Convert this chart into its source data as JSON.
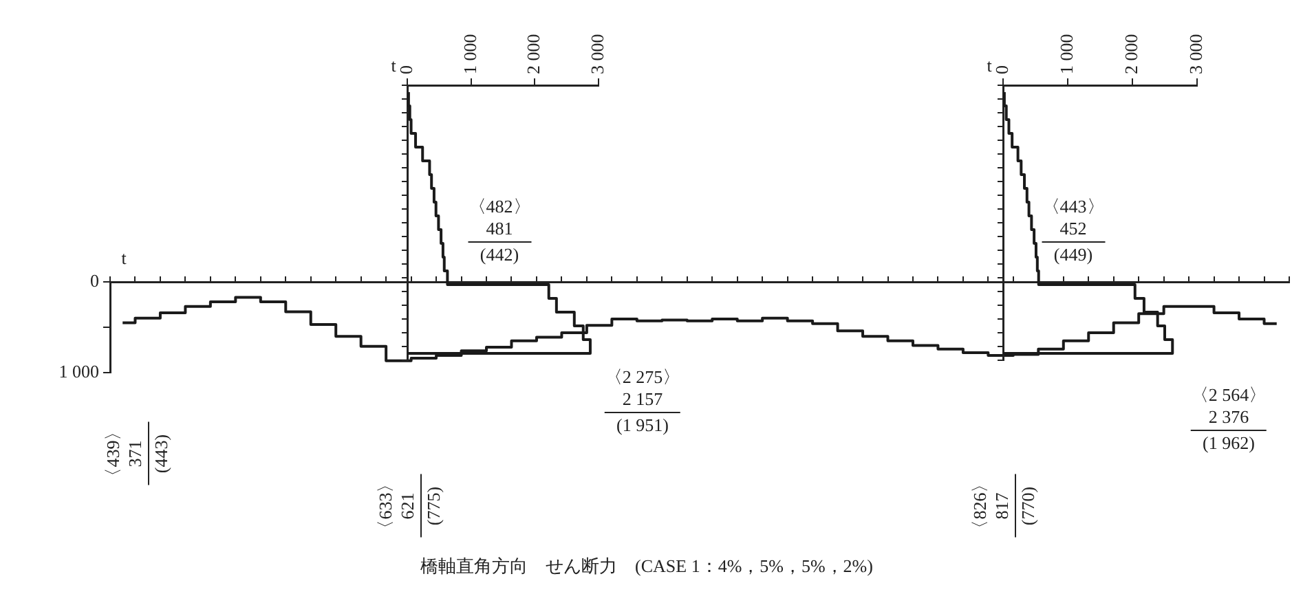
{
  "chart_data": [
    {
      "type": "step",
      "title": "橋軸直角方向　せん断力　(CASE 1：4%，5%，5%，2%)",
      "ylabel": "t",
      "categories": [
        null,
        null,
        null,
        null,
        null,
        null,
        null,
        null,
        null,
        null,
        null,
        null,
        null,
        null,
        null,
        null,
        null,
        null,
        null,
        null,
        null,
        null,
        null,
        null,
        null,
        null,
        null,
        null,
        null,
        null,
        null,
        null,
        null,
        null,
        null,
        null,
        null,
        null,
        null,
        null,
        null,
        null,
        null,
        null,
        null,
        null,
        null
      ],
      "series": [
        {
          "color": "#1a1a1a",
          "values": [
            450,
            400,
            340,
            270,
            220,
            170,
            220,
            330,
            470,
            600,
            710,
            870,
            840,
            810,
            760,
            720,
            650,
            610,
            560,
            480,
            410,
            430,
            420,
            430,
            410,
            430,
            400,
            430,
            460,
            540,
            600,
            650,
            700,
            740,
            780,
            810,
            800,
            740,
            650,
            560,
            450,
            350,
            270,
            270,
            340,
            410,
            460
          ]
        }
      ],
      "ylim": [
        1000,
        0
      ],
      "yticks": [
        0,
        {
          "value": 500,
          "label": null
        },
        {
          "value": 1000,
          "label": "1 000"
        }
      ],
      "tick_labels": "y",
      "annotations": [
        "〈439〉\n371\n(443)",
        "〈633〉\n621\n(775)",
        "〈2 275〉\n2 157\n(1 951)",
        "〈826〉\n817\n(770)",
        "〈2 564〉\n2 376\n(1 962)"
      ]
    },
    {
      "type": "step",
      "orientation": "horizontal",
      "xlabel": "t",
      "categories": [
        null,
        null,
        null,
        null,
        null,
        null,
        null,
        null,
        null,
        null,
        null,
        null,
        null,
        null,
        null,
        null,
        null,
        null,
        null,
        null
      ],
      "series": [
        {
          "color": "#1a1a1a",
          "values": [
            20,
            40,
            60,
            130,
            240,
            350,
            380,
            420,
            450,
            490,
            530,
            560,
            580,
            630,
            2220,
            2340,
            2620,
            2760,
            2870,
            0
          ]
        }
      ],
      "xlim": [
        0,
        3000
      ],
      "xticks": [
        0,
        {
          "value": 1000,
          "label": "1 000"
        },
        {
          "value": 2000,
          "label": "2 000"
        },
        {
          "value": 3000,
          "label": "3 000"
        }
      ],
      "tick_labels": "x",
      "annotations": [
        "〈482〉\n481\n(442)"
      ]
    },
    {
      "type": "step",
      "orientation": "horizontal",
      "xlabel": "t",
      "categories": [
        null,
        null,
        null,
        null,
        null,
        null,
        null,
        null,
        null,
        null,
        null,
        null,
        null,
        null,
        null,
        null,
        null,
        null,
        null,
        null
      ],
      "series": [
        {
          "color": "#1a1a1a",
          "values": [
            20,
            50,
            90,
            140,
            230,
            280,
            330,
            370,
            400,
            440,
            480,
            510,
            530,
            550,
            2040,
            2180,
            2390,
            2500,
            2620,
            0
          ]
        }
      ],
      "xlim": [
        0,
        3000
      ],
      "xticks": [
        0,
        {
          "value": 1000,
          "label": "1 000"
        },
        {
          "value": 2000,
          "label": "2 000"
        },
        {
          "value": 3000,
          "label": "3 000"
        }
      ],
      "tick_labels": "x",
      "annotations": [
        "〈443〉\n452\n(449)"
      ]
    }
  ]
}
